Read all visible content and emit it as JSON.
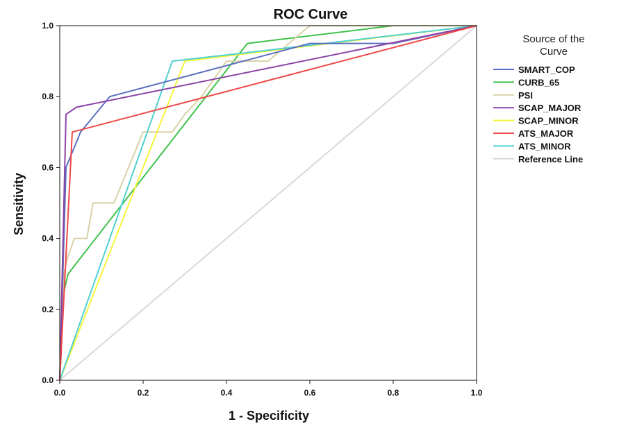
{
  "chart_data": {
    "type": "line",
    "title": "ROC Curve",
    "xlabel": "1 - Specificity",
    "ylabel": "Sensitivity",
    "xlim": [
      0,
      1
    ],
    "ylim": [
      0,
      1
    ],
    "xticks": [
      "0.0",
      "0.2",
      "0.4",
      "0.6",
      "0.8",
      "1.0"
    ],
    "yticks": [
      "0.0",
      "0.2",
      "0.4",
      "0.6",
      "0.8",
      "1.0"
    ],
    "grid": false,
    "legend": {
      "title_line1": "Source of the",
      "title_line2": "Curve",
      "placement": "right"
    },
    "series": [
      {
        "name": "SMART_COP",
        "color": "#5b6fc0",
        "points": [
          [
            0,
            0
          ],
          [
            0.015,
            0.6
          ],
          [
            0.05,
            0.7
          ],
          [
            0.12,
            0.8
          ],
          [
            0.6,
            0.95
          ],
          [
            0.8,
            0.95
          ],
          [
            1,
            1
          ]
        ]
      },
      {
        "name": "CURB_65",
        "color": "#3fc24a",
        "points": [
          [
            0,
            0
          ],
          [
            0.01,
            0.25
          ],
          [
            0.02,
            0.3
          ],
          [
            0.45,
            0.95
          ],
          [
            0.8,
            1
          ],
          [
            1,
            1
          ]
        ]
      },
      {
        "name": "PSI",
        "color": "#d9d2a6",
        "points": [
          [
            0,
            0
          ],
          [
            0.01,
            0.3
          ],
          [
            0.02,
            0.35
          ],
          [
            0.035,
            0.4
          ],
          [
            0.065,
            0.4
          ],
          [
            0.08,
            0.5
          ],
          [
            0.13,
            0.5
          ],
          [
            0.2,
            0.7
          ],
          [
            0.27,
            0.7
          ],
          [
            0.3,
            0.75
          ],
          [
            0.34,
            0.8
          ],
          [
            0.4,
            0.9
          ],
          [
            0.5,
            0.9
          ],
          [
            0.6,
            1
          ],
          [
            1,
            1
          ]
        ]
      },
      {
        "name": "SCAP_MAJOR",
        "color": "#8b43a6",
        "points": [
          [
            0,
            0
          ],
          [
            0.015,
            0.75
          ],
          [
            0.04,
            0.77
          ],
          [
            1,
            1
          ]
        ]
      },
      {
        "name": "SCAP_MINOR",
        "color": "#f5f53a",
        "points": [
          [
            0,
            0
          ],
          [
            0.3,
            0.9
          ],
          [
            1,
            1
          ]
        ]
      },
      {
        "name": "ATS_MAJOR",
        "color": "#f04848",
        "points": [
          [
            0,
            0
          ],
          [
            0.03,
            0.7
          ],
          [
            1,
            1
          ]
        ]
      },
      {
        "name": "ATS_MINOR",
        "color": "#4fd0d0",
        "points": [
          [
            0,
            0
          ],
          [
            0.27,
            0.9
          ],
          [
            0.42,
            0.92
          ],
          [
            1,
            1
          ]
        ]
      },
      {
        "name": "Reference Line",
        "color": "#d8d8d8",
        "points": [
          [
            0,
            0
          ],
          [
            1,
            1
          ]
        ]
      }
    ]
  }
}
